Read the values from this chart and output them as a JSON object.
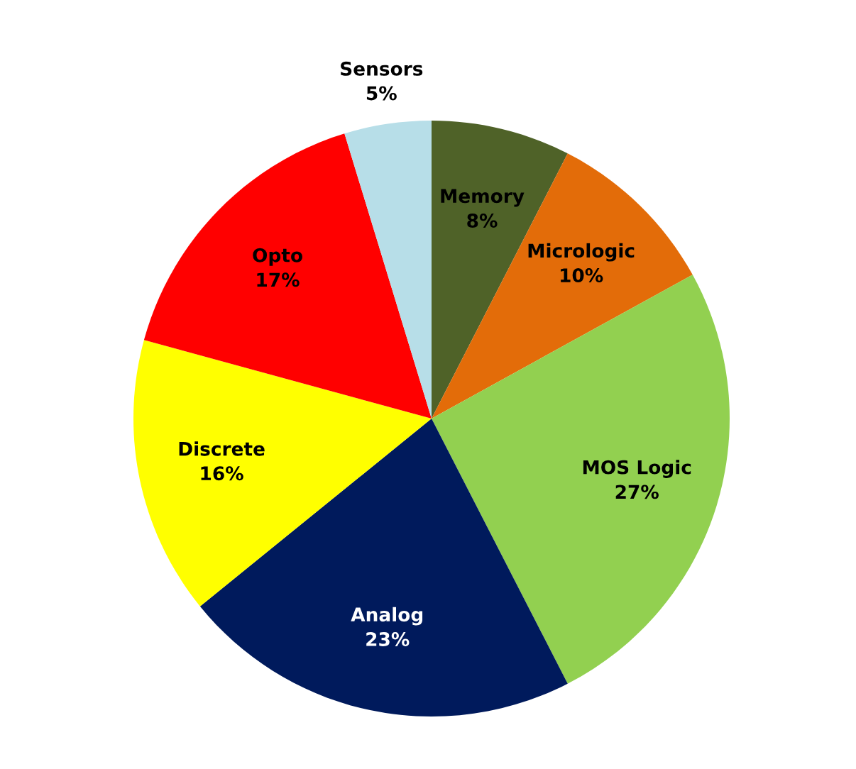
{
  "chart_data": {
    "type": "pie",
    "categories": [
      "Memory",
      "Micrologic",
      "MOS Logic",
      "Analog",
      "Discrete",
      "Opto",
      "Sensors"
    ],
    "values": [
      8,
      10,
      27,
      23,
      16,
      17,
      5
    ],
    "value_labels": [
      "8%",
      "10%",
      "27%",
      "23%",
      "16%",
      "17%",
      "5%"
    ],
    "colors": [
      "#4f6228",
      "#e36c09",
      "#92d050",
      "#001a5c",
      "#ffff00",
      "#ff0000",
      "#b7dee8"
    ]
  }
}
